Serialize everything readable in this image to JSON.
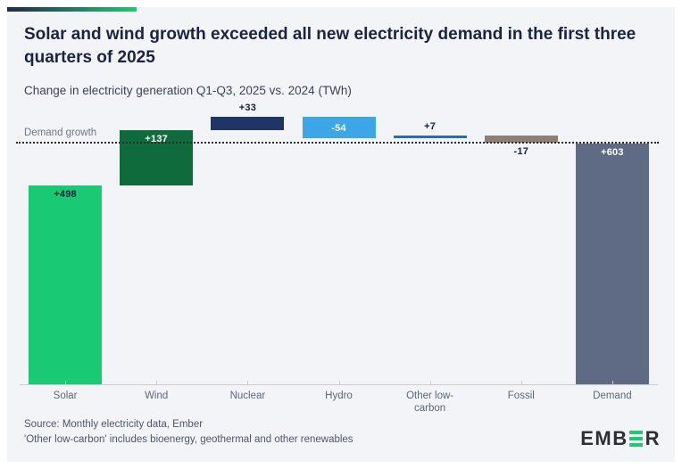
{
  "chart_data": {
    "type": "bar",
    "subtype": "waterfall",
    "title": "Solar and wind growth exceeded all new electricity demand in the first three quarters of 2025",
    "subtitle": "Change in electricity generation Q1-Q3, 2025 vs. 2024 (TWh)",
    "unit": "TWh",
    "grid": false,
    "legend": false,
    "ylim": [
      0,
      700
    ],
    "categories": [
      "Solar",
      "Wind",
      "Nuclear",
      "Hydro",
      "Other low-carbon",
      "Fossil",
      "Demand"
    ],
    "values": [
      498,
      137,
      33,
      -54,
      7,
      -17,
      603
    ],
    "reference_line": {
      "label": "Demand growth",
      "value": 603
    },
    "bars": [
      {
        "category": "Solar",
        "value": 498,
        "label": "+498",
        "from": 0,
        "to": 498,
        "color": "#19c973",
        "label_placement": "inside-top",
        "label_color": "#14203e"
      },
      {
        "category": "Wind",
        "value": 137,
        "label": "+137",
        "from": 498,
        "to": 635,
        "color": "#0f6a3c",
        "label_placement": "inside-top",
        "label_color": "#ffffff"
      },
      {
        "category": "Nuclear",
        "value": 33,
        "label": "+33",
        "from": 635,
        "to": 668,
        "color": "#1f3566",
        "label_placement": "above",
        "label_color": "#14203e"
      },
      {
        "category": "Hydro",
        "value": -54,
        "label": "-54",
        "from": 614,
        "to": 668,
        "color": "#3da6e6",
        "label_placement": "inside-middle",
        "label_color": "#ffffff"
      },
      {
        "category": "Other low-carbon",
        "value": 7,
        "label": "+7",
        "from": 614,
        "to": 621,
        "color": "#2e6dad",
        "label_placement": "above",
        "label_color": "#14203e"
      },
      {
        "category": "Fossil",
        "value": -17,
        "label": "-17",
        "from": 604,
        "to": 621,
        "color": "#8c7f75",
        "label_placement": "below",
        "label_color": "#14203e"
      },
      {
        "category": "Demand",
        "value": 603,
        "label": "+603",
        "from": 0,
        "to": 603,
        "color": "#5f6b85",
        "label_placement": "inside-top",
        "label_color": "#ffffff"
      }
    ]
  },
  "footer": {
    "source_line1": "Source: Monthly electricity data, Ember",
    "source_line2": "'Other low-carbon' includes bioenergy, geothermal and other renewables",
    "logo": {
      "left": "EMB",
      "right": "R"
    }
  },
  "colors": {
    "card_background": "#f3f4f8",
    "accent_gradient_start": "#1e2a4c",
    "accent_gradient_end": "#23c873",
    "title": "#1a2342",
    "subtitle": "#3b4257",
    "axis": "#c9ccd6",
    "category_label": "#5d6679",
    "reference_label": "#6e7685",
    "reference_line": "#2b2b2b",
    "source_text": "#4d5470",
    "logo_dark": "#2c2f36",
    "logo_green": "#1fc873"
  }
}
